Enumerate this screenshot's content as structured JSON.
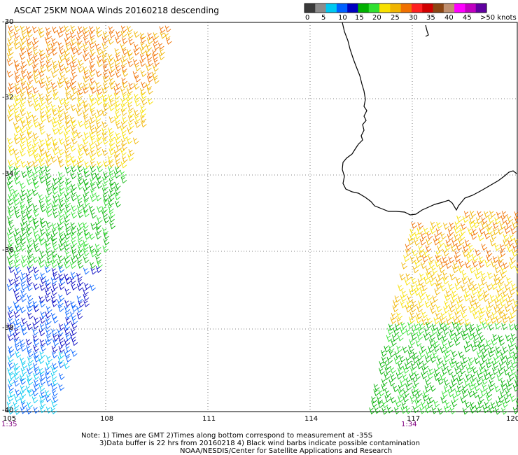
{
  "title": "ASCAT 25KM NOAA Winds 20160218 descending",
  "legend": {
    "labels": [
      "0",
      "5",
      "10",
      "15",
      "20",
      "25",
      "30",
      "35",
      "40",
      "45",
      ">50 knots"
    ],
    "colors": [
      "#3a3a3a",
      "#8c8c8c",
      "#00c8f0",
      "#0060ff",
      "#0000c0",
      "#00b000",
      "#30e030",
      "#f8e000",
      "#f0b400",
      "#f07000",
      "#ff2020",
      "#d00000",
      "#8b4513",
      "#c09070",
      "#ff00ff",
      "#c000c0",
      "#6000a0"
    ]
  },
  "axes": {
    "lat_labels": [
      "-30",
      "-32",
      "-34",
      "-36",
      "-38",
      "-40"
    ],
    "lon_labels": [
      "105",
      "108",
      "111",
      "114",
      "117",
      "120"
    ]
  },
  "pass_times": [
    "1:35",
    "1:34"
  ],
  "footer": {
    "line1": "Note: 1) Times are GMT 2)Times along bottom correspond to measurement at -35S",
    "line2": "3)Data buffer is 22 hrs from 20160218 4) Black wind barbs indicate possible contamination",
    "line3": "NOAA/NESDIS/Center for Satellite Applications and Research"
  }
}
